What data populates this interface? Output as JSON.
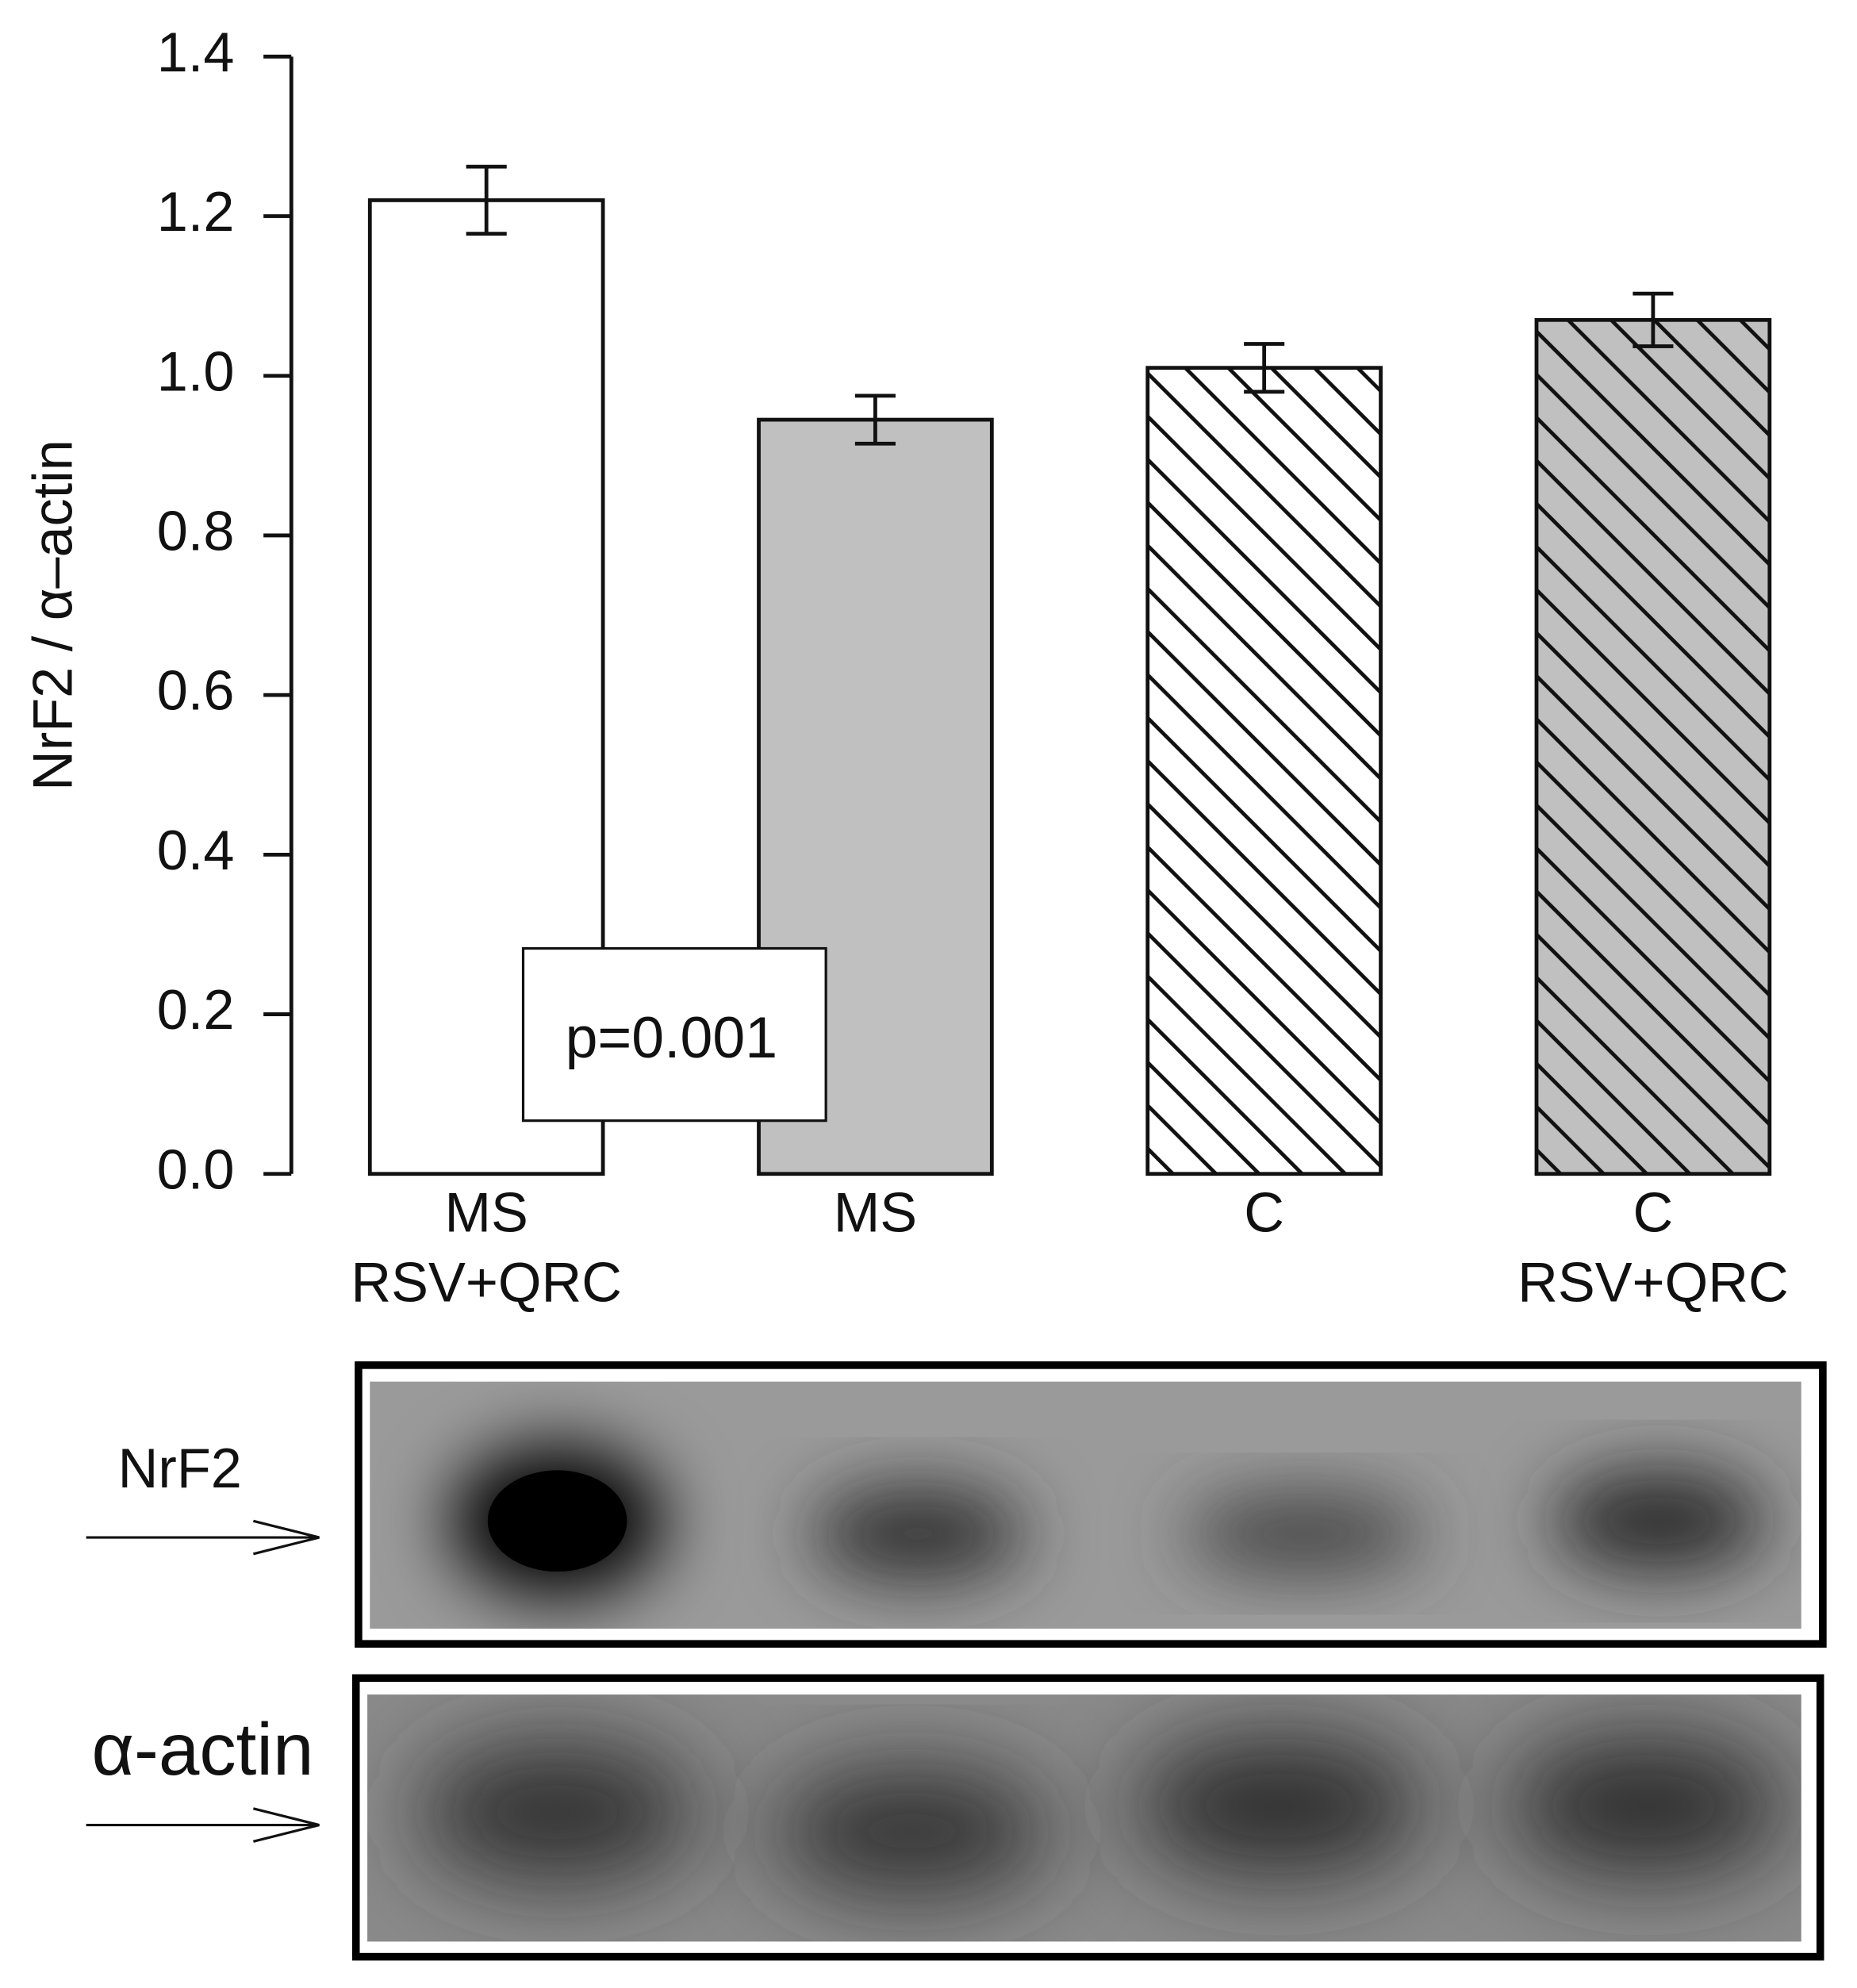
{
  "chart_data": {
    "type": "bar",
    "ylabel": "NrF2 / α–actin",
    "categories": [
      [
        "MS",
        "RSV+QRC"
      ],
      [
        "MS"
      ],
      [
        "C"
      ],
      [
        "C",
        "RSV+QRC"
      ]
    ],
    "values": [
      1.22,
      0.945,
      1.01,
      1.07
    ],
    "errors": [
      0.042,
      0.03,
      0.03,
      0.033
    ],
    "bar_fill": [
      "#ffffff",
      "#c0c0c0",
      "#ffffff",
      "#c0c0c0"
    ],
    "hatch": [
      false,
      false,
      true,
      true
    ],
    "ylim": [
      0,
      1.4
    ],
    "yticks": [
      {
        "value": 0,
        "label": "0.0"
      },
      {
        "value": 0.2,
        "label": "0.2"
      },
      {
        "value": 0.4,
        "label": "0.4"
      },
      {
        "value": 0.6,
        "label": "0.6"
      },
      {
        "value": 0.8,
        "label": "0.8"
      },
      {
        "value": 1.0,
        "label": "1.0"
      },
      {
        "value": 1.2,
        "label": "1.2"
      },
      {
        "value": 1.4,
        "label": "1.4"
      }
    ],
    "annotation": "p=0.001"
  },
  "blot": {
    "labels": [
      "NrF2",
      "α-actin"
    ]
  }
}
